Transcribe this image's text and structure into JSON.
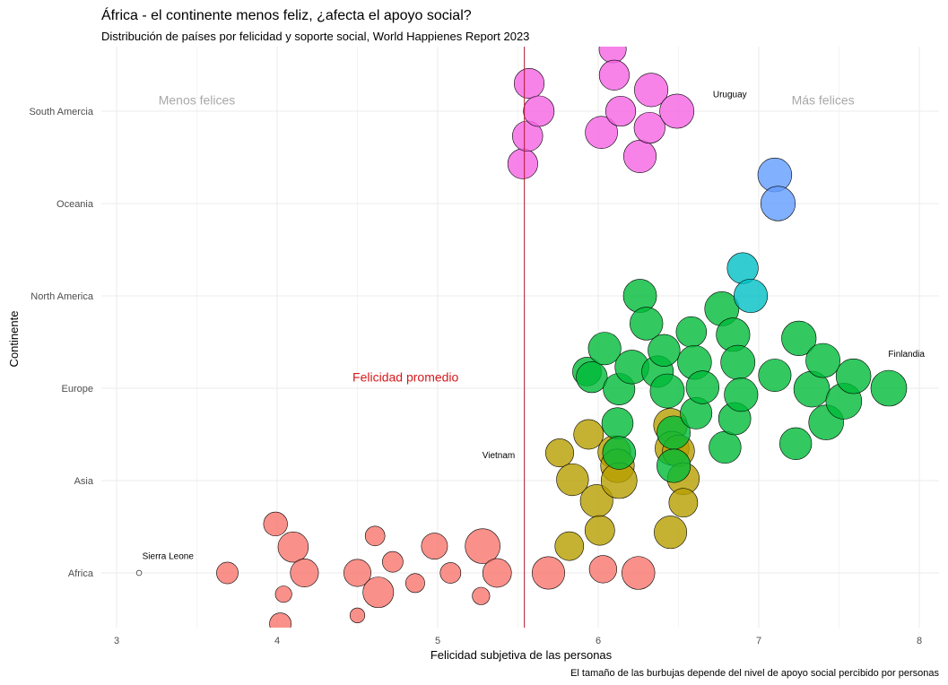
{
  "chart_data": {
    "type": "scatter",
    "title": "África - el continente menos feliz, ¿afecta el apoyo social?",
    "subtitle": "Distribución de países por felicidad y soporte social, World Happienes Report 2023",
    "xlabel": "Felicidad subjetiva de las personas",
    "ylabel": "Continente",
    "caption": "El tamaño de las burbujas depende del nivel de apoyo social percibido por personas",
    "xlim": [
      2.9,
      8.15
    ],
    "x_ticks": [
      "3",
      "4",
      "5",
      "6",
      "7",
      "8"
    ],
    "x_tick_values": [
      3,
      4,
      5,
      6,
      7,
      8
    ],
    "categories": [
      "Africa",
      "Asia",
      "Europe",
      "North America",
      "Oceania",
      "South Amercia"
    ],
    "grid": true,
    "legend": "none",
    "reference_line": {
      "x": 5.54,
      "color": "#b2182b"
    },
    "annotations": [
      {
        "text": "Menos felices",
        "x": 3.5,
        "category": "South Amercia",
        "offset": 0.11,
        "style": "side"
      },
      {
        "text": "Más felices",
        "x": 7.4,
        "category": "South Amercia",
        "offset": 0.11,
        "style": "side"
      },
      {
        "text": "Felicidad promedio",
        "x": 4.8,
        "category": "Europe",
        "offset": 0.11,
        "style": "avg"
      },
      {
        "text": "Uruguay",
        "x": 6.82,
        "category": "South Amercia",
        "offset": 0.19,
        "style": "country"
      },
      {
        "text": "Finlandia",
        "x": 7.92,
        "category": "Europe",
        "offset": 0.38,
        "style": "country"
      },
      {
        "text": "Vietnam",
        "x": 5.38,
        "category": "Asia",
        "offset": 0.28,
        "style": "country"
      },
      {
        "text": "Sierra Leone",
        "x": 3.32,
        "category": "Africa",
        "offset": 0.19,
        "style": "country"
      }
    ],
    "series": [
      {
        "category": "Africa",
        "color": "#F8766D",
        "points": [
          [
            3.14,
            0.0,
            0.05
          ],
          [
            3.69,
            0.0,
            0.56
          ],
          [
            3.99,
            0.53,
            0.63
          ],
          [
            4.1,
            0.28,
            0.83
          ],
          [
            4.17,
            0.0,
            0.76
          ],
          [
            4.02,
            -0.55,
            0.56
          ],
          [
            4.04,
            -0.23,
            0.4
          ],
          [
            4.5,
            0.0,
            0.73
          ],
          [
            4.5,
            -0.46,
            0.35
          ],
          [
            4.61,
            0.4,
            0.5
          ],
          [
            4.63,
            -0.21,
            0.84
          ],
          [
            4.72,
            0.12,
            0.53
          ],
          [
            4.86,
            -0.11,
            0.48
          ],
          [
            4.98,
            0.29,
            0.7
          ],
          [
            5.08,
            0.0,
            0.53
          ],
          [
            5.27,
            -0.25,
            0.43
          ],
          [
            5.28,
            0.29,
            0.97
          ],
          [
            5.37,
            0.0,
            0.78
          ],
          [
            5.69,
            0.0,
            0.9
          ],
          [
            6.03,
            0.04,
            0.74
          ],
          [
            6.25,
            0.0,
            0.91
          ]
        ]
      },
      {
        "category": "Asia",
        "color": "#B79F00",
        "points": [
          [
            5.76,
            0.3,
            0.76
          ],
          [
            5.84,
            0.01,
            0.88
          ],
          [
            5.82,
            -0.71,
            0.78
          ],
          [
            5.94,
            0.5,
            0.81
          ],
          [
            5.99,
            -0.22,
            0.9
          ],
          [
            6.01,
            -0.54,
            0.81
          ],
          [
            6.1,
            0.31,
            0.9
          ],
          [
            6.12,
            0.16,
            0.93
          ],
          [
            6.13,
            0.0,
            1.0
          ],
          [
            6.45,
            0.6,
            0.93
          ],
          [
            6.46,
            0.35,
            0.94
          ],
          [
            6.5,
            0.32,
            0.88
          ],
          [
            6.53,
            0.02,
            0.88
          ],
          [
            6.53,
            -0.24,
            0.78
          ],
          [
            6.45,
            -0.56,
            0.9
          ]
        ]
      },
      {
        "category": "Europe",
        "color": "#00BA38",
        "points": [
          [
            5.93,
            0.18,
            0.78
          ],
          [
            5.96,
            0.12,
            0.85
          ],
          [
            6.04,
            0.43,
            0.9
          ],
          [
            6.12,
            -0.38,
            0.86
          ],
          [
            6.13,
            -0.01,
            0.87
          ],
          [
            6.13,
            -0.7,
            0.91
          ],
          [
            6.21,
            0.23,
            0.94
          ],
          [
            6.26,
            1.0,
            0.92
          ],
          [
            6.3,
            0.7,
            0.91
          ],
          [
            6.37,
            0.18,
            0.87
          ],
          [
            6.41,
            0.41,
            0.88
          ],
          [
            6.43,
            -0.03,
            0.95
          ],
          [
            6.47,
            -0.48,
            0.92
          ],
          [
            6.47,
            -0.84,
            0.93
          ],
          [
            6.58,
            0.61,
            0.83
          ],
          [
            6.6,
            0.28,
            0.94
          ],
          [
            6.61,
            -0.27,
            0.87
          ],
          [
            6.65,
            0.01,
            0.91
          ],
          [
            6.77,
            0.86,
            0.95
          ],
          [
            6.79,
            -0.64,
            0.88
          ],
          [
            6.84,
            0.58,
            0.93
          ],
          [
            6.85,
            -0.33,
            0.89
          ],
          [
            6.87,
            0.28,
            0.95
          ],
          [
            6.89,
            -0.07,
            0.93
          ],
          [
            7.1,
            0.14,
            0.9
          ],
          [
            7.25,
            0.54,
            0.96
          ],
          [
            7.23,
            -0.6,
            0.88
          ],
          [
            7.33,
            -0.01,
            1.0
          ],
          [
            7.4,
            0.3,
            0.95
          ],
          [
            7.42,
            -0.37,
            0.97
          ],
          [
            7.53,
            -0.14,
            1.0
          ],
          [
            7.59,
            0.13,
            0.97
          ],
          [
            7.81,
            0.0,
            1.0
          ]
        ]
      },
      {
        "category": "North America",
        "color": "#00BFC4",
        "points": [
          [
            6.9,
            0.3,
            0.85
          ],
          [
            6.95,
            0.0,
            0.93
          ]
        ]
      },
      {
        "category": "Oceania",
        "color": "#619CFF",
        "points": [
          [
            7.1,
            0.31,
            0.94
          ],
          [
            7.12,
            0.0,
            0.96
          ]
        ]
      },
      {
        "category": "South Amercia",
        "color": "#F564E3",
        "points": [
          [
            5.53,
            -0.57,
            0.82
          ],
          [
            5.56,
            -0.27,
            0.83
          ],
          [
            5.57,
            0.3,
            0.82
          ],
          [
            5.63,
            0.0,
            0.84
          ],
          [
            6.02,
            -0.23,
            0.89
          ],
          [
            6.09,
            0.67,
            0.73
          ],
          [
            6.1,
            0.39,
            0.82
          ],
          [
            6.14,
            0.0,
            0.82
          ],
          [
            6.26,
            -0.49,
            0.9
          ],
          [
            6.32,
            -0.18,
            0.85
          ],
          [
            6.33,
            0.23,
            0.93
          ],
          [
            6.49,
            0.0,
            0.95
          ]
        ]
      }
    ]
  }
}
